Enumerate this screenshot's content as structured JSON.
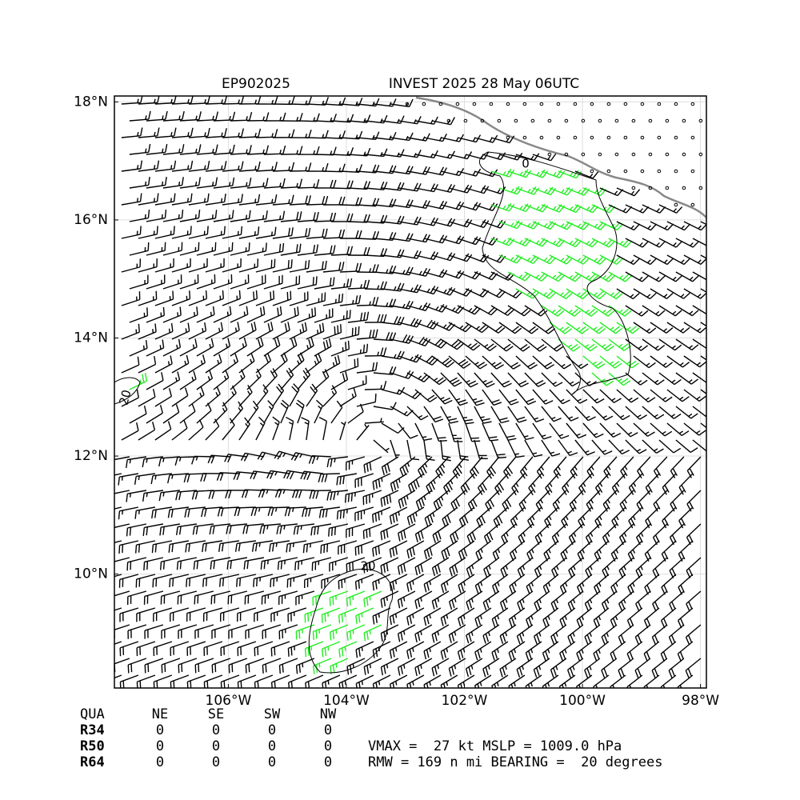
{
  "title": {
    "left": "EP902025",
    "right": "INVEST 2025 28 May 06UTC"
  },
  "map": {
    "lon_range": [
      -107.93,
      -97.9
    ],
    "lat_range": [
      8.07,
      18.1
    ],
    "grid": true,
    "lon_ticks": [
      {
        "value": -106,
        "label": "106°W"
      },
      {
        "value": -104,
        "label": "104°W"
      },
      {
        "value": -102,
        "label": "102°W"
      },
      {
        "value": -100,
        "label": "100°W"
      },
      {
        "value": -98,
        "label": "98°W"
      }
    ],
    "lat_ticks": [
      {
        "value": 10,
        "label": "10°N"
      },
      {
        "value": 12,
        "label": "12°N"
      },
      {
        "value": 14,
        "label": "14°N"
      },
      {
        "value": 16,
        "label": "16°N"
      },
      {
        "value": 18,
        "label": "18°N"
      }
    ],
    "contour_labels": [
      "0",
      "20",
      "20"
    ]
  },
  "table": {
    "header": [
      "QUA",
      "NE",
      "SE",
      "SW",
      "NW"
    ],
    "rows": [
      [
        "R34",
        0,
        0,
        0,
        0
      ],
      [
        "R50",
        0,
        0,
        0,
        0
      ],
      [
        "R64",
        0,
        0,
        0,
        0
      ]
    ]
  },
  "summary": [
    "VMAX =  27 kt MSLP = 1009.0 hPa",
    "RMW = 169 n mi BEARING =  20 degrees"
  ]
}
